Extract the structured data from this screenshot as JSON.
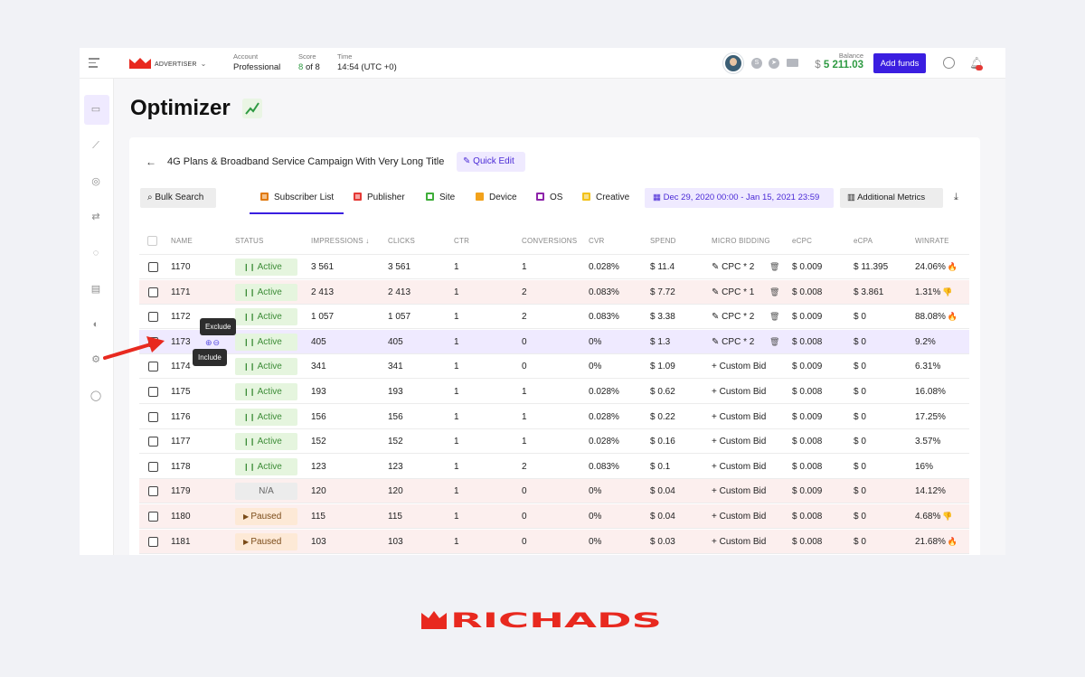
{
  "topbar": {
    "role": "ADVERTISER",
    "account_label": "Account",
    "account_value": "Professional",
    "score_label": "Score",
    "score_value": "8",
    "score_suffix": "of 8",
    "time_label": "Time",
    "time_value": "14:54 (UTC +0)",
    "balance_label": "Balance",
    "balance_currency": "$",
    "balance_value": "5 211.03",
    "add_funds": "Add funds"
  },
  "page": {
    "title": "Optimizer",
    "campaign_title": "4G Plans & Broadband Service Campaign With Very Long Title",
    "quick_edit": "Quick Edit",
    "bulk_search": "Bulk Search",
    "tabs": [
      "Subscriber List",
      "Publisher",
      "Site",
      "Device",
      "OS",
      "Creative"
    ],
    "tab_colors": [
      "#e07a12",
      "#e53935",
      "#3fae3a",
      "#f2a21b",
      "#8e24aa",
      "#f2c21b"
    ],
    "date_range": "Dec 29, 2020 00:00 - Jan 15, 2021 23:59",
    "additional_metrics": "Additional Metrics"
  },
  "table": {
    "columns": [
      "NAME",
      "STATUS",
      "IMPRESSIONS ↓",
      "CLICKS",
      "CTR",
      "CONVERSIONS",
      "CVR",
      "SPEND",
      "MICRO BIDDING",
      "eCPC",
      "eCPA",
      "WINRATE"
    ],
    "rows": [
      {
        "name": "1170",
        "status": "Active",
        "impressions": "3 561",
        "clicks": "3 561",
        "ctr": "1",
        "conversions": "1",
        "cvr": "0.028%",
        "spend": "$ 11.4",
        "bid": "CPC * 2",
        "ecpc": "$ 0.009",
        "ecpa": "$ 11.395",
        "winrate": "24.06%",
        "emoji": "🔥"
      },
      {
        "name": "1171",
        "status": "Active",
        "impressions": "2 413",
        "clicks": "2 413",
        "ctr": "1",
        "conversions": "2",
        "cvr": "0.083%",
        "spend": "$ 7.72",
        "bid": "CPC * 1",
        "ecpc": "$ 0.008",
        "ecpa": "$ 3.861",
        "winrate": "1.31%",
        "emoji": "👎"
      },
      {
        "name": "1172",
        "status": "Active",
        "impressions": "1 057",
        "clicks": "1 057",
        "ctr": "1",
        "conversions": "2",
        "cvr": "0.083%",
        "spend": "$ 3.38",
        "bid": "CPC * 2",
        "ecpc": "$ 0.009",
        "ecpa": "$ 0",
        "winrate": "88.08%",
        "emoji": "🔥"
      },
      {
        "name": "1173",
        "status": "Active",
        "impressions": "405",
        "clicks": "405",
        "ctr": "1",
        "conversions": "0",
        "cvr": "0%",
        "spend": "$ 1.3",
        "bid": "CPC * 2",
        "ecpc": "$ 0.008",
        "ecpa": "$ 0",
        "winrate": "9.2%",
        "emoji": ""
      },
      {
        "name": "1174",
        "status": "Active",
        "impressions": "341",
        "clicks": "341",
        "ctr": "1",
        "conversions": "0",
        "cvr": "0%",
        "spend": "$ 1.09",
        "bid": "Custom Bid",
        "ecpc": "$ 0.009",
        "ecpa": "$ 0",
        "winrate": "6.31%",
        "emoji": ""
      },
      {
        "name": "1175",
        "status": "Active",
        "impressions": "193",
        "clicks": "193",
        "ctr": "1",
        "conversions": "1",
        "cvr": "0.028%",
        "spend": "$ 0.62",
        "bid": "Custom Bid",
        "ecpc": "$ 0.008",
        "ecpa": "$ 0",
        "winrate": "16.08%",
        "emoji": ""
      },
      {
        "name": "1176",
        "status": "Active",
        "impressions": "156",
        "clicks": "156",
        "ctr": "1",
        "conversions": "1",
        "cvr": "0.028%",
        "spend": "$ 0.22",
        "bid": "Custom Bid",
        "ecpc": "$ 0.009",
        "ecpa": "$ 0",
        "winrate": "17.25%",
        "emoji": ""
      },
      {
        "name": "1177",
        "status": "Active",
        "impressions": "152",
        "clicks": "152",
        "ctr": "1",
        "conversions": "1",
        "cvr": "0.028%",
        "spend": "$ 0.16",
        "bid": "Custom Bid",
        "ecpc": "$ 0.008",
        "ecpa": "$ 0",
        "winrate": "3.57%",
        "emoji": ""
      },
      {
        "name": "1178",
        "status": "Active",
        "impressions": "123",
        "clicks": "123",
        "ctr": "1",
        "conversions": "2",
        "cvr": "0.083%",
        "spend": "$ 0.1",
        "bid": "Custom Bid",
        "ecpc": "$ 0.008",
        "ecpa": "$ 0",
        "winrate": "16%",
        "emoji": ""
      },
      {
        "name": "1179",
        "status": "N/A",
        "impressions": "120",
        "clicks": "120",
        "ctr": "1",
        "conversions": "0",
        "cvr": "0%",
        "spend": "$ 0.04",
        "bid": "Custom Bid",
        "ecpc": "$ 0.009",
        "ecpa": "$ 0",
        "winrate": "14.12%",
        "emoji": ""
      },
      {
        "name": "1180",
        "status": "Paused",
        "impressions": "115",
        "clicks": "115",
        "ctr": "1",
        "conversions": "0",
        "cvr": "0%",
        "spend": "$ 0.04",
        "bid": "Custom Bid",
        "ecpc": "$ 0.008",
        "ecpa": "$ 0",
        "winrate": "4.68%",
        "emoji": "👎"
      },
      {
        "name": "1181",
        "status": "Paused",
        "impressions": "103",
        "clicks": "103",
        "ctr": "1",
        "conversions": "0",
        "cvr": "0%",
        "spend": "$ 0.03",
        "bid": "Custom Bid",
        "ecpc": "$ 0.008",
        "ecpa": "$ 0",
        "winrate": "21.68%",
        "emoji": "🔥"
      }
    ]
  },
  "tooltips": {
    "exclude": "Exclude",
    "include": "Include"
  },
  "brand": "RICHADS"
}
